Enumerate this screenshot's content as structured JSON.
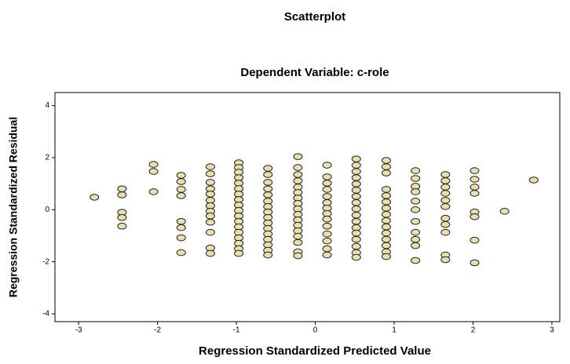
{
  "chart_data": {
    "type": "scatter",
    "title": "Scatterplot",
    "subtitle": "Dependent Variable: c-role",
    "x_label": "Regression Standardized Predicted Value",
    "y_label": "Regression Standardized Residual",
    "color": "#e9dfae",
    "xlim": [
      -3.3,
      3.1
    ],
    "ylim": [
      -4.3,
      4.5
    ],
    "xticks": [
      -3,
      -2,
      -1,
      0,
      1,
      2,
      3
    ],
    "yticks": [
      -4,
      -2,
      0,
      2,
      4
    ],
    "x": [
      -2.8,
      -2.45,
      -2.45,
      -2.45,
      -2.45,
      -2.45,
      -2.05,
      -2.05,
      -2.05,
      -1.7,
      -1.7,
      -1.7,
      -1.7,
      -1.7,
      -1.7,
      -1.7,
      -1.7,
      -1.33,
      -1.33,
      -1.33,
      -1.33,
      -1.33,
      -1.33,
      -1.33,
      -1.33,
      -1.33,
      -1.33,
      -1.33,
      -1.33,
      -1.33,
      -0.97,
      -0.97,
      -0.97,
      -0.97,
      -0.97,
      -0.97,
      -0.97,
      -0.97,
      -0.97,
      -0.97,
      -0.97,
      -0.97,
      -0.97,
      -0.97,
      -0.97,
      -0.97,
      -0.97,
      -0.97,
      -0.6,
      -0.6,
      -0.6,
      -0.6,
      -0.6,
      -0.6,
      -0.6,
      -0.6,
      -0.6,
      -0.6,
      -0.6,
      -0.6,
      -0.6,
      -0.6,
      -0.6,
      -0.6,
      -0.22,
      -0.22,
      -0.22,
      -0.22,
      -0.22,
      -0.22,
      -0.22,
      -0.22,
      -0.22,
      -0.22,
      -0.22,
      -0.22,
      -0.22,
      -0.22,
      -0.22,
      -0.22,
      -0.22,
      0.15,
      0.15,
      0.15,
      0.15,
      0.15,
      0.15,
      0.15,
      0.15,
      0.15,
      0.15,
      0.15,
      0.15,
      0.15,
      0.15,
      0.52,
      0.52,
      0.52,
      0.52,
      0.52,
      0.52,
      0.52,
      0.52,
      0.52,
      0.52,
      0.52,
      0.52,
      0.52,
      0.52,
      0.52,
      0.52,
      0.52,
      0.9,
      0.9,
      0.9,
      0.9,
      0.9,
      0.9,
      0.9,
      0.9,
      0.9,
      0.9,
      0.9,
      0.9,
      0.9,
      0.9,
      0.9,
      1.27,
      1.27,
      1.27,
      1.27,
      1.27,
      1.27,
      1.27,
      1.27,
      1.27,
      1.27,
      1.27,
      1.65,
      1.65,
      1.65,
      1.65,
      1.65,
      1.65,
      1.65,
      1.65,
      1.65,
      1.65,
      1.65,
      2.02,
      2.02,
      2.02,
      2.02,
      2.02,
      2.02,
      2.02,
      2.02,
      2.4,
      2.77
    ],
    "values": [
      0.48,
      0.8,
      0.57,
      -0.1,
      -0.3,
      -0.63,
      1.74,
      1.47,
      0.69,
      1.32,
      1.08,
      0.78,
      0.54,
      -0.45,
      -0.69,
      -1.08,
      -1.65,
      1.65,
      1.38,
      1.05,
      0.8,
      0.6,
      0.36,
      0.15,
      -0.06,
      -0.24,
      -0.48,
      -0.87,
      -1.47,
      -1.68,
      1.8,
      1.62,
      1.44,
      1.23,
      1.02,
      0.81,
      0.6,
      0.39,
      0.18,
      -0.03,
      -0.24,
      -0.45,
      -0.66,
      -0.87,
      -1.08,
      -1.29,
      -1.5,
      -1.68,
      1.59,
      1.35,
      1.05,
      0.8,
      0.57,
      0.33,
      0.12,
      -0.09,
      -0.3,
      -0.51,
      -0.72,
      -0.93,
      -1.14,
      -1.35,
      -1.56,
      -1.74,
      2.04,
      1.62,
      1.35,
      1.11,
      0.87,
      0.66,
      0.45,
      0.24,
      0.03,
      -0.18,
      -0.39,
      -0.6,
      -0.81,
      -1.02,
      -1.26,
      -1.62,
      -1.77,
      1.71,
      1.26,
      1.02,
      0.78,
      0.51,
      0.27,
      0.06,
      -0.15,
      -0.36,
      -0.63,
      -0.93,
      -1.2,
      -1.5,
      -1.74,
      1.95,
      1.71,
      1.47,
      1.23,
      0.99,
      0.75,
      0.51,
      0.27,
      0.03,
      -0.21,
      -0.45,
      -0.69,
      -0.9,
      -1.14,
      -1.41,
      -1.65,
      -1.83,
      1.89,
      1.65,
      1.41,
      0.78,
      0.54,
      0.3,
      0.06,
      -0.18,
      -0.42,
      -0.66,
      -0.9,
      -1.14,
      -1.38,
      -1.62,
      -1.8,
      1.5,
      1.2,
      0.9,
      0.69,
      0.33,
      0,
      -0.45,
      -0.87,
      -1.14,
      -1.38,
      -1.95,
      1.35,
      1.11,
      0.87,
      0.63,
      0.36,
      0.12,
      -0.33,
      -0.57,
      -0.87,
      -1.74,
      -1.92,
      1.5,
      1.17,
      0.87,
      0.63,
      -0.09,
      -0.27,
      -1.17,
      -2.04,
      -0.06,
      1.14
    ]
  }
}
